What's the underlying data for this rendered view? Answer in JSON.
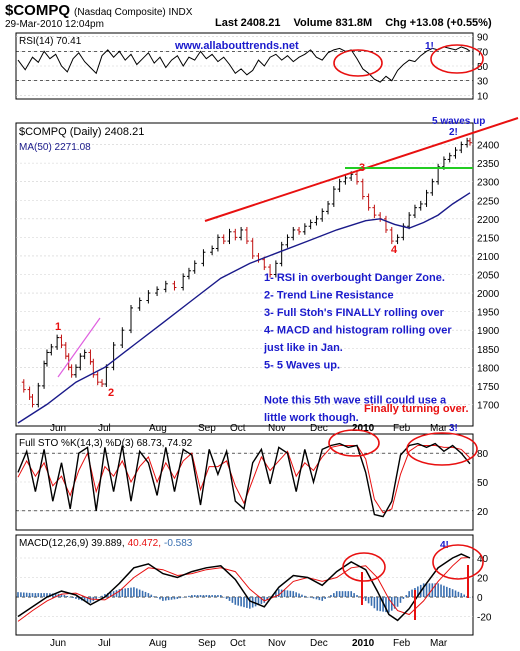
{
  "header": {
    "symbol": "$COMPQ",
    "name": "(Nasdaq Composite) INDX",
    "datetime": "29-Mar-2010 12:04pm",
    "last": "Last 2408.21",
    "volume": "Volume 831.8M",
    "change": "Chg +13.08 (+0.55%)",
    "change_arrow": "▲"
  },
  "colors": {
    "red": "#e81010",
    "green": "#22cc22",
    "blue": "#1a1acc",
    "ma": "#1a1a8a",
    "black": "#000000",
    "volume": "#3a6fb0",
    "rsi_fill": "#4a7a4a"
  },
  "rsi": {
    "label": "RSI(14) 70.41",
    "site": "www.allabouttrends.net",
    "note": "1!",
    "ticks": [
      "90",
      "70",
      "50",
      "30",
      "10"
    ]
  },
  "price": {
    "label": "$COMPQ (Daily) 2408.21",
    "ma_label": "MA(50) 2271.08",
    "ticks": [
      "2400",
      "2350",
      "2300",
      "2250",
      "2200",
      "2150",
      "2100",
      "2050",
      "2000",
      "1950",
      "1900",
      "1850",
      "1800",
      "1750",
      "1700"
    ],
    "annotations": {
      "waves": "5 waves up",
      "two_excl": "2!",
      "n1": "1",
      "n2": "2",
      "n3": "3",
      "n4": "4"
    },
    "notes": [
      "1- RSI in overbought Danger Zone.",
      "2- Trend Line Resistance",
      "3- Full Stoh's FINALLY rolling over",
      "4- MACD and histogram rolling over",
      "just like in Jan.",
      "5- 5 Waves up.",
      "",
      "Note this 5th wave still could use a",
      "little work though."
    ],
    "finally": "Finally turning over.",
    "months": [
      "Jun",
      "Jul",
      "Aug",
      "Sep",
      "Oct",
      "Nov",
      "Dec",
      "2010",
      "Feb",
      "Mar",
      "3!"
    ]
  },
  "sto": {
    "label": "Full STO %K(14,3) %D(3) 68.73, 74.92",
    "ticks": [
      "80",
      "50",
      "20"
    ]
  },
  "macd": {
    "label_a": "MACD(12,26,9) 39.889,",
    "label_b": "40.472,",
    "label_c": "-0.583",
    "note": "4!",
    "ticks": [
      "40",
      "20",
      "0",
      "-20"
    ],
    "months": [
      "Jun",
      "Jul",
      "Aug",
      "Sep",
      "Oct",
      "Nov",
      "Dec",
      "2010",
      "Feb",
      "Mar"
    ]
  },
  "chart_data": {
    "type": "line",
    "title": "$COMPQ (Nasdaq Composite) INDX",
    "x_range": [
      "2009-05-15",
      "2010-03-29"
    ],
    "ylim": [
      1650,
      2450
    ],
    "series": [
      {
        "name": "$COMPQ (Daily)",
        "points": [
          [
            0,
            1760
          ],
          [
            4,
            1740
          ],
          [
            8,
            1720
          ],
          [
            10,
            1700
          ],
          [
            14,
            1750
          ],
          [
            18,
            1810
          ],
          [
            20,
            1840
          ],
          [
            23,
            1855
          ],
          [
            27,
            1880
          ],
          [
            30,
            1860
          ],
          [
            33,
            1830
          ],
          [
            35,
            1800
          ],
          [
            37,
            1780
          ],
          [
            40,
            1800
          ],
          [
            43,
            1830
          ],
          [
            46,
            1840
          ],
          [
            50,
            1815
          ],
          [
            52,
            1780
          ],
          [
            55,
            1760
          ],
          [
            58,
            1755
          ],
          [
            61,
            1800
          ],
          [
            66,
            1860
          ],
          [
            72,
            1900
          ],
          [
            78,
            1960
          ],
          [
            84,
            1980
          ],
          [
            90,
            2000
          ],
          [
            96,
            2010
          ],
          [
            102,
            2025
          ],
          [
            108,
            2015
          ],
          [
            114,
            2045
          ],
          [
            118,
            2060
          ],
          [
            122,
            2080
          ],
          [
            128,
            2110
          ],
          [
            134,
            2120
          ],
          [
            138,
            2150
          ],
          [
            142,
            2140
          ],
          [
            146,
            2165
          ],
          [
            150,
            2150
          ],
          [
            154,
            2170
          ],
          [
            158,
            2140
          ],
          [
            162,
            2100
          ],
          [
            166,
            2090
          ],
          [
            170,
            2070
          ],
          [
            174,
            2050
          ],
          [
            178,
            2080
          ],
          [
            182,
            2130
          ],
          [
            186,
            2150
          ],
          [
            190,
            2170
          ],
          [
            194,
            2165
          ],
          [
            198,
            2180
          ],
          [
            202,
            2190
          ],
          [
            206,
            2200
          ],
          [
            210,
            2220
          ],
          [
            214,
            2240
          ],
          [
            218,
            2280
          ],
          [
            222,
            2300
          ],
          [
            226,
            2310
          ],
          [
            230,
            2320
          ],
          [
            234,
            2300
          ],
          [
            238,
            2260
          ],
          [
            242,
            2230
          ],
          [
            246,
            2210
          ],
          [
            250,
            2200
          ],
          [
            254,
            2170
          ],
          [
            258,
            2140
          ],
          [
            262,
            2150
          ],
          [
            266,
            2180
          ],
          [
            270,
            2210
          ],
          [
            274,
            2230
          ],
          [
            278,
            2240
          ],
          [
            282,
            2270
          ],
          [
            286,
            2300
          ],
          [
            290,
            2340
          ],
          [
            294,
            2360
          ],
          [
            298,
            2370
          ],
          [
            302,
            2385
          ],
          [
            306,
            2400
          ],
          [
            310,
            2410
          ],
          [
            312,
            2405
          ]
        ]
      },
      {
        "name": "MA(50)",
        "points": [
          [
            0,
            1650
          ],
          [
            20,
            1700
          ],
          [
            40,
            1760
          ],
          [
            60,
            1800
          ],
          [
            80,
            1860
          ],
          [
            100,
            1920
          ],
          [
            120,
            1980
          ],
          [
            140,
            2040
          ],
          [
            160,
            2080
          ],
          [
            180,
            2110
          ],
          [
            200,
            2140
          ],
          [
            220,
            2170
          ],
          [
            240,
            2195
          ],
          [
            250,
            2200
          ],
          [
            260,
            2185
          ],
          [
            270,
            2175
          ],
          [
            280,
            2190
          ],
          [
            290,
            2210
          ],
          [
            300,
            2240
          ],
          [
            312,
            2270
          ]
        ]
      }
    ],
    "rsi_series": [
      [
        0,
        58
      ],
      [
        5,
        45
      ],
      [
        10,
        62
      ],
      [
        14,
        55
      ],
      [
        18,
        70
      ],
      [
        22,
        60
      ],
      [
        26,
        66
      ],
      [
        30,
        50
      ],
      [
        34,
        42
      ],
      [
        38,
        60
      ],
      [
        42,
        68
      ],
      [
        46,
        56
      ],
      [
        50,
        48
      ],
      [
        54,
        40
      ],
      [
        58,
        64
      ],
      [
        62,
        72
      ],
      [
        66,
        62
      ],
      [
        70,
        70
      ],
      [
        74,
        58
      ],
      [
        78,
        66
      ],
      [
        82,
        52
      ],
      [
        86,
        60
      ],
      [
        90,
        68
      ],
      [
        94,
        54
      ],
      [
        98,
        62
      ],
      [
        102,
        48
      ],
      [
        106,
        58
      ],
      [
        110,
        64
      ],
      [
        114,
        50
      ],
      [
        118,
        62
      ],
      [
        122,
        58
      ],
      [
        126,
        70
      ],
      [
        130,
        60
      ],
      [
        134,
        66
      ],
      [
        138,
        56
      ],
      [
        142,
        62
      ],
      [
        146,
        52
      ],
      [
        150,
        40
      ],
      [
        154,
        46
      ],
      [
        158,
        38
      ],
      [
        162,
        44
      ],
      [
        166,
        58
      ],
      [
        170,
        50
      ],
      [
        174,
        62
      ],
      [
        178,
        66
      ],
      [
        182,
        58
      ],
      [
        186,
        64
      ],
      [
        190,
        56
      ],
      [
        194,
        62
      ],
      [
        198,
        66
      ],
      [
        202,
        72
      ],
      [
        206,
        62
      ],
      [
        210,
        58
      ],
      [
        214,
        68
      ],
      [
        218,
        72
      ],
      [
        222,
        74
      ],
      [
        226,
        70
      ],
      [
        230,
        72
      ],
      [
        234,
        60
      ],
      [
        238,
        46
      ],
      [
        242,
        40
      ],
      [
        246,
        32
      ],
      [
        250,
        28
      ],
      [
        254,
        36
      ],
      [
        258,
        30
      ],
      [
        262,
        44
      ],
      [
        266,
        52
      ],
      [
        270,
        58
      ],
      [
        274,
        56
      ],
      [
        278,
        64
      ],
      [
        282,
        70
      ],
      [
        286,
        74
      ],
      [
        290,
        72
      ],
      [
        294,
        76
      ],
      [
        298,
        74
      ],
      [
        302,
        72
      ],
      [
        306,
        76
      ],
      [
        310,
        73
      ],
      [
        312,
        70
      ]
    ],
    "stoch_k": [
      [
        0,
        60
      ],
      [
        6,
        82
      ],
      [
        12,
        40
      ],
      [
        18,
        84
      ],
      [
        24,
        30
      ],
      [
        30,
        70
      ],
      [
        36,
        22
      ],
      [
        42,
        80
      ],
      [
        48,
        86
      ],
      [
        54,
        20
      ],
      [
        60,
        86
      ],
      [
        66,
        40
      ],
      [
        72,
        88
      ],
      [
        78,
        30
      ],
      [
        84,
        82
      ],
      [
        90,
        70
      ],
      [
        96,
        36
      ],
      [
        102,
        86
      ],
      [
        108,
        40
      ],
      [
        114,
        84
      ],
      [
        120,
        78
      ],
      [
        126,
        26
      ],
      [
        132,
        84
      ],
      [
        138,
        58
      ],
      [
        144,
        82
      ],
      [
        150,
        30
      ],
      [
        156,
        22
      ],
      [
        162,
        70
      ],
      [
        168,
        84
      ],
      [
        174,
        48
      ],
      [
        180,
        86
      ],
      [
        186,
        80
      ],
      [
        192,
        40
      ],
      [
        198,
        84
      ],
      [
        204,
        50
      ],
      [
        210,
        84
      ],
      [
        216,
        88
      ],
      [
        222,
        90
      ],
      [
        228,
        86
      ],
      [
        234,
        88
      ],
      [
        240,
        60
      ],
      [
        246,
        16
      ],
      [
        252,
        14
      ],
      [
        258,
        30
      ],
      [
        264,
        78
      ],
      [
        270,
        88
      ],
      [
        276,
        90
      ],
      [
        282,
        86
      ],
      [
        288,
        90
      ],
      [
        294,
        82
      ],
      [
        300,
        88
      ],
      [
        306,
        80
      ],
      [
        312,
        69
      ]
    ],
    "stoch_d": [
      [
        0,
        55
      ],
      [
        6,
        72
      ],
      [
        12,
        56
      ],
      [
        18,
        70
      ],
      [
        24,
        46
      ],
      [
        30,
        56
      ],
      [
        36,
        36
      ],
      [
        42,
        62
      ],
      [
        48,
        80
      ],
      [
        54,
        40
      ],
      [
        60,
        66
      ],
      [
        66,
        56
      ],
      [
        72,
        72
      ],
      [
        78,
        50
      ],
      [
        84,
        66
      ],
      [
        90,
        76
      ],
      [
        96,
        50
      ],
      [
        102,
        70
      ],
      [
        108,
        54
      ],
      [
        114,
        72
      ],
      [
        120,
        80
      ],
      [
        126,
        42
      ],
      [
        132,
        66
      ],
      [
        138,
        66
      ],
      [
        144,
        72
      ],
      [
        150,
        46
      ],
      [
        156,
        28
      ],
      [
        162,
        52
      ],
      [
        168,
        76
      ],
      [
        174,
        62
      ],
      [
        180,
        72
      ],
      [
        186,
        82
      ],
      [
        192,
        56
      ],
      [
        198,
        70
      ],
      [
        204,
        62
      ],
      [
        210,
        76
      ],
      [
        216,
        86
      ],
      [
        222,
        88
      ],
      [
        228,
        88
      ],
      [
        234,
        88
      ],
      [
        240,
        74
      ],
      [
        246,
        32
      ],
      [
        252,
        18
      ],
      [
        258,
        22
      ],
      [
        264,
        58
      ],
      [
        270,
        82
      ],
      [
        276,
        88
      ],
      [
        282,
        88
      ],
      [
        288,
        88
      ],
      [
        294,
        86
      ],
      [
        300,
        86
      ],
      [
        306,
        84
      ],
      [
        312,
        75
      ]
    ],
    "macd_line": [
      [
        0,
        -20
      ],
      [
        10,
        -10
      ],
      [
        20,
        0
      ],
      [
        30,
        6
      ],
      [
        40,
        2
      ],
      [
        50,
        -8
      ],
      [
        60,
        0
      ],
      [
        70,
        14
      ],
      [
        80,
        30
      ],
      [
        90,
        34
      ],
      [
        100,
        24
      ],
      [
        110,
        20
      ],
      [
        120,
        26
      ],
      [
        130,
        30
      ],
      [
        140,
        32
      ],
      [
        150,
        18
      ],
      [
        160,
        -4
      ],
      [
        170,
        -10
      ],
      [
        180,
        10
      ],
      [
        190,
        22
      ],
      [
        200,
        20
      ],
      [
        210,
        12
      ],
      [
        220,
        26
      ],
      [
        230,
        36
      ],
      [
        240,
        28
      ],
      [
        248,
        6
      ],
      [
        256,
        -18
      ],
      [
        262,
        -24
      ],
      [
        270,
        -12
      ],
      [
        280,
        10
      ],
      [
        290,
        30
      ],
      [
        300,
        40
      ],
      [
        306,
        44
      ],
      [
        312,
        40
      ]
    ],
    "macd_signal": [
      [
        0,
        -25
      ],
      [
        10,
        -14
      ],
      [
        20,
        -4
      ],
      [
        30,
        3
      ],
      [
        40,
        4
      ],
      [
        50,
        -2
      ],
      [
        60,
        -3
      ],
      [
        70,
        6
      ],
      [
        80,
        20
      ],
      [
        90,
        30
      ],
      [
        100,
        28
      ],
      [
        110,
        22
      ],
      [
        120,
        24
      ],
      [
        130,
        28
      ],
      [
        140,
        30
      ],
      [
        150,
        26
      ],
      [
        160,
        8
      ],
      [
        170,
        -4
      ],
      [
        180,
        2
      ],
      [
        190,
        16
      ],
      [
        200,
        20
      ],
      [
        210,
        16
      ],
      [
        220,
        20
      ],
      [
        230,
        30
      ],
      [
        240,
        32
      ],
      [
        248,
        20
      ],
      [
        256,
        -2
      ],
      [
        262,
        -14
      ],
      [
        270,
        -18
      ],
      [
        280,
        -4
      ],
      [
        290,
        16
      ],
      [
        300,
        32
      ],
      [
        306,
        40
      ],
      [
        312,
        40.5
      ]
    ]
  }
}
